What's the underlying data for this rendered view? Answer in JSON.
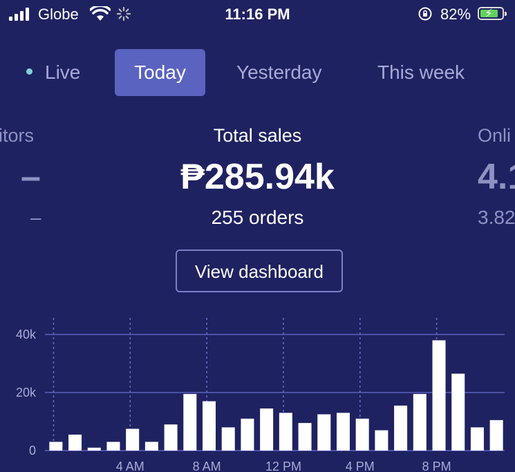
{
  "status_bar": {
    "carrier": "Globe",
    "time": "11:16 PM",
    "battery_percent": "82%",
    "battery_level": 0.82,
    "battery_color": "#5fd35a"
  },
  "tabs": [
    {
      "label": "Live",
      "active": false
    },
    {
      "label": "Today",
      "active": true
    },
    {
      "label": "Yesterday",
      "active": false
    },
    {
      "label": "This week",
      "active": false
    }
  ],
  "metrics": {
    "left": {
      "label": "itors",
      "value": "–",
      "sub": "–"
    },
    "center": {
      "label": "Total sales",
      "value": "₱285.94k",
      "sub": "255 orders"
    },
    "right": {
      "label": "Onli",
      "value": "4.1",
      "sub": "3.82"
    }
  },
  "view_dashboard_label": "View dashboard",
  "colors": {
    "background": "#1f2261",
    "active_tab": "#5b63c0",
    "live_dot": "#7fd3d6",
    "bar": "#ffffff",
    "gridline": "#5b63c0"
  },
  "chart_data": {
    "type": "bar",
    "y_ticks": [
      "40k",
      "20k",
      "0"
    ],
    "x_ticks": [
      "4 AM",
      "8 AM",
      "12 PM",
      "4 PM",
      "8 PM"
    ],
    "ylim": [
      0,
      40000
    ],
    "values": [
      3000,
      5500,
      1000,
      3000,
      7500,
      3000,
      9000,
      19500,
      17000,
      8000,
      11000,
      14500,
      13000,
      9500,
      12500,
      13000,
      11000,
      7000,
      15500,
      19500,
      38000,
      26500,
      8000,
      10500
    ]
  }
}
